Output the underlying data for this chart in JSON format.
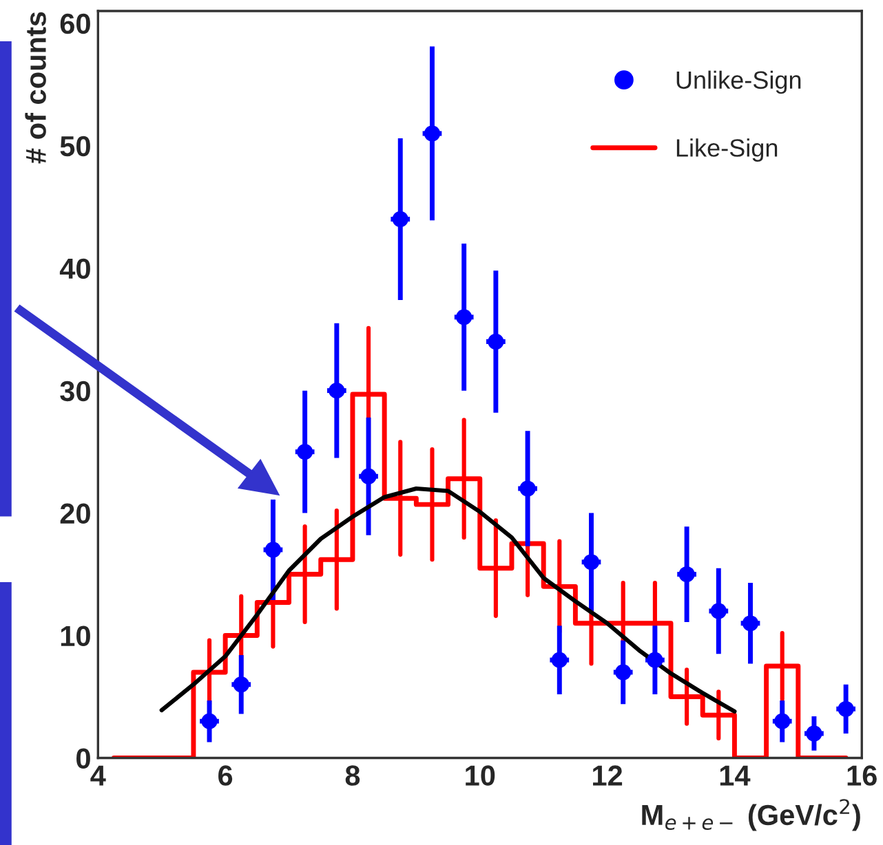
{
  "chart_data": {
    "type": "scatter",
    "xlabel": "M$_{e+e−}$ (GeV/c$^{2}$)",
    "ylabel": "# of counts",
    "xlim": [
      4,
      16
    ],
    "ylim": [
      0,
      61
    ],
    "xticks": [
      4,
      6,
      8,
      10,
      12,
      14,
      16
    ],
    "yticks": [
      0,
      10,
      20,
      30,
      40,
      50,
      60
    ],
    "grid": false,
    "legend": "top right",
    "series": [
      {
        "name": "Unlike-Sign",
        "marker": "circle",
        "xerrors": [
          0.15,
          0.15,
          0.15,
          0.15,
          0.15,
          0.15,
          0.15,
          0.15,
          0.15,
          0.15,
          0.15,
          0.15,
          0.15,
          0.15,
          0.15,
          0.15,
          0.15,
          0.15,
          0.15,
          0.15,
          0.15
        ],
        "color": "#0000ff",
        "x": [
          5.75,
          6.25,
          6.75,
          7.25,
          7.75,
          8.25,
          8.75,
          9.25,
          9.75,
          10.25,
          10.75,
          11.25,
          11.75,
          12.25,
          12.75,
          13.25,
          13.75,
          14.25,
          14.75,
          15.25,
          15.75
        ],
        "values": [
          3,
          6,
          17,
          25,
          30,
          23,
          44,
          51,
          36,
          34,
          22,
          8,
          16,
          7,
          8,
          15,
          12,
          11,
          3,
          2,
          4
        ],
        "errors": [
          1.7,
          2.4,
          4.1,
          5,
          5.5,
          4.8,
          6.6,
          7.1,
          6,
          5.8,
          4.7,
          2.8,
          4,
          2.6,
          2.8,
          3.9,
          3.5,
          3.3,
          1.7,
          1.4,
          2
        ]
      },
      {
        "name": "Like-Sign",
        "type": "step",
        "color": "#ff0000",
        "x": [
          4.25,
          4.75,
          5.25,
          5.75,
          6.25,
          6.75,
          7.25,
          7.75,
          8.25,
          8.75,
          9.25,
          9.75,
          10.25,
          10.75,
          11.25,
          11.75,
          12.25,
          12.75,
          13.25,
          13.75,
          14.25,
          14.75,
          15.25,
          15.75
        ],
        "values": [
          0,
          0,
          0,
          7,
          10,
          12.7,
          15,
          16.2,
          29.7,
          21.2,
          20.7,
          22.8,
          15.5,
          17.5,
          14,
          11,
          11,
          11,
          5,
          3.5,
          0,
          7.5,
          0,
          0
        ],
        "errors": [
          null,
          null,
          null,
          2.6,
          3.2,
          3.6,
          3.9,
          4,
          5.4,
          4.6,
          4.5,
          4.8,
          3.9,
          4.2,
          3.7,
          3.3,
          3.3,
          3.3,
          2.2,
          1.9,
          null,
          2.7,
          null,
          null
        ]
      },
      {
        "type": "line",
        "marker": "none",
        "color": "#000000",
        "x": [
          5,
          5.5,
          6,
          6.5,
          7,
          7.5,
          8,
          8.5,
          9,
          9.5,
          10,
          10.5,
          11,
          11.5,
          12,
          12.5,
          13,
          13.5,
          14
        ],
        "values": [
          3.9,
          6,
          8.3,
          11.7,
          15.3,
          17.9,
          19.7,
          21.3,
          22,
          21.8,
          20.1,
          18,
          14.7,
          12.8,
          11,
          8.8,
          6.9,
          5.3,
          3.8
        ]
      }
    ]
  }
}
